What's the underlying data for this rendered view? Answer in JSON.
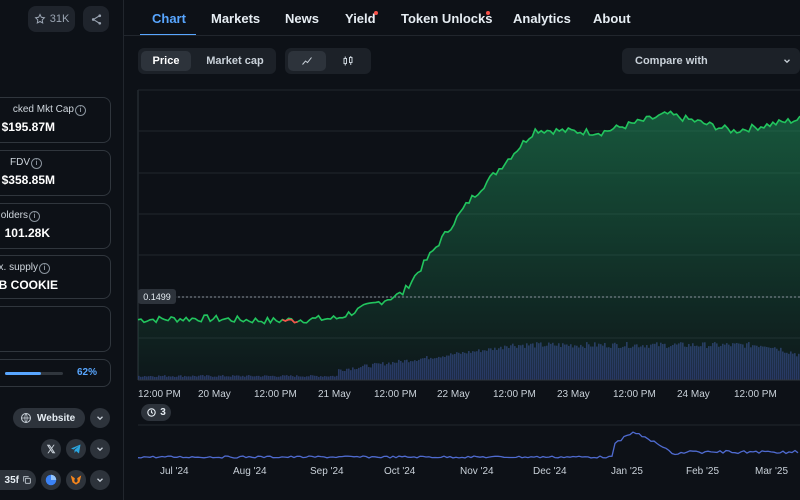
{
  "top_actions": {
    "watchlist_count": "31K",
    "star_icon": "star-icon",
    "share_icon": "share-icon"
  },
  "stats": [
    {
      "label": "cked Mkt Cap",
      "value": "$195.87M"
    },
    {
      "label": "FDV",
      "value": "$358.85M"
    },
    {
      "label": "Holders",
      "value": "101.28K"
    },
    {
      "label": "ax. supply",
      "value": "B COOKIE"
    }
  ],
  "progress": {
    "percent_label": "62%",
    "fraction": 0.62
  },
  "links": {
    "website_label": "Website",
    "contract_fragment": "35f"
  },
  "tabs": [
    {
      "label": "Chart",
      "active": true,
      "dot": false
    },
    {
      "label": "Markets",
      "active": false,
      "dot": false
    },
    {
      "label": "News",
      "active": false,
      "dot": false
    },
    {
      "label": "Yield",
      "active": false,
      "dot": true
    },
    {
      "label": "Token Unlocks",
      "active": false,
      "dot": true
    },
    {
      "label": "Analytics",
      "active": false,
      "dot": false
    },
    {
      "label": "About",
      "active": false,
      "dot": false
    }
  ],
  "chart_controls": {
    "price_label": "Price",
    "market_cap_label": "Market cap",
    "compare_label": "Compare with"
  },
  "chart": {
    "price_marker": "0.1499",
    "event_count": "3",
    "x_ticks": [
      "12:00 PM",
      "20 May",
      "12:00 PM",
      "21 May",
      "12:00 PM",
      "22 May",
      "12:00 PM",
      "23 May",
      "12:00 PM",
      "24 May",
      "12:00 PM"
    ],
    "brush_ticks": [
      "Jul '24",
      "Aug '24",
      "Sep '24",
      "Oct '24",
      "Nov '24",
      "Dec '24",
      "Jan '25",
      "Feb '25",
      "Mar '25"
    ]
  },
  "colors": {
    "accent": "#58a6ff",
    "line": "#22c55e",
    "negative": "#f85149",
    "volume": "#3b4a8a"
  },
  "chart_data": {
    "type": "line",
    "series": [
      {
        "x": [
          "12:00 PM",
          "20 May",
          "12:00 PM",
          "21 May",
          "12:00 PM",
          "22 May",
          "12:00 PM",
          "23 May",
          "12:00 PM",
          "24 May",
          "12:00 PM"
        ],
        "values": [
          0.15,
          0.151,
          0.149,
          0.151,
          0.172,
          0.248,
          0.307,
          0.305,
          0.32,
          0.306,
          0.316
        ]
      }
    ],
    "reference_line": 0.1499,
    "grid": true
  }
}
